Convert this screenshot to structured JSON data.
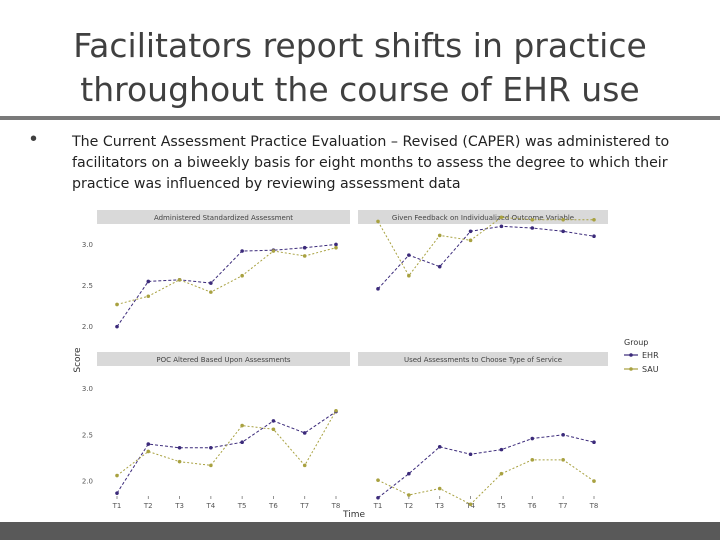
{
  "slide": {
    "title_lines": [
      "Facilitators report shifts in practice",
      "throughout the course of EHR use"
    ],
    "bullet_text": "The Current Assessment Practice Evaluation – Revised (CAPER) was administered to facilitators on a biweekly basis for eight months to assess the degree to which their practice was influenced by reviewing assessment data"
  },
  "chart_data": {
    "type": "line",
    "xlabel": "Time",
    "ylabel": "Score",
    "x": [
      "T1",
      "T2",
      "T3",
      "T4",
      "T5",
      "T6",
      "T7",
      "T8"
    ],
    "y_ticks": [
      "2.0",
      "2.5",
      "3.0"
    ],
    "ylim": [
      1.85,
      3.2
    ],
    "legend": {
      "title": "Group",
      "position": "right",
      "entries": [
        "EHR",
        "SAU"
      ]
    },
    "colors": {
      "EHR": "#3b2a7a",
      "SAU": "#a8a140"
    },
    "facets": [
      {
        "title": "Administered Standardized Assessment",
        "series": [
          {
            "name": "EHR",
            "values": [
              2.0,
              2.55,
              2.57,
              2.53,
              2.92,
              2.93,
              2.96,
              3.0
            ]
          },
          {
            "name": "SAU",
            "values": [
              2.27,
              2.37,
              2.57,
              2.42,
              2.62,
              2.92,
              2.86,
              2.96
            ]
          }
        ]
      },
      {
        "title": "Given Feedback on Individualized Outcome Variable",
        "series": [
          {
            "name": "EHR",
            "values": [
              2.46,
              2.87,
              2.73,
              3.16,
              3.22,
              3.2,
              3.16,
              3.1
            ]
          },
          {
            "name": "SAU",
            "values": [
              3.28,
              2.62,
              3.11,
              3.05,
              3.33,
              3.3,
              3.3,
              3.3
            ]
          }
        ]
      },
      {
        "title": "POC Altered Based Upon Assessments",
        "series": [
          {
            "name": "EHR",
            "values": [
              1.87,
              2.4,
              2.36,
              2.36,
              2.42,
              2.65,
              2.52,
              2.75
            ]
          },
          {
            "name": "SAU",
            "values": [
              2.06,
              2.32,
              2.21,
              2.17,
              2.6,
              2.56,
              2.17,
              2.76
            ]
          }
        ]
      },
      {
        "title": "Used Assessments to Choose Type of Service",
        "series": [
          {
            "name": "EHR",
            "values": [
              1.82,
              2.08,
              2.37,
              2.29,
              2.34,
              2.46,
              2.5,
              2.42
            ]
          },
          {
            "name": "SAU",
            "values": [
              2.01,
              1.85,
              1.92,
              1.75,
              2.08,
              2.23,
              2.23,
              2.0
            ]
          }
        ]
      }
    ]
  }
}
